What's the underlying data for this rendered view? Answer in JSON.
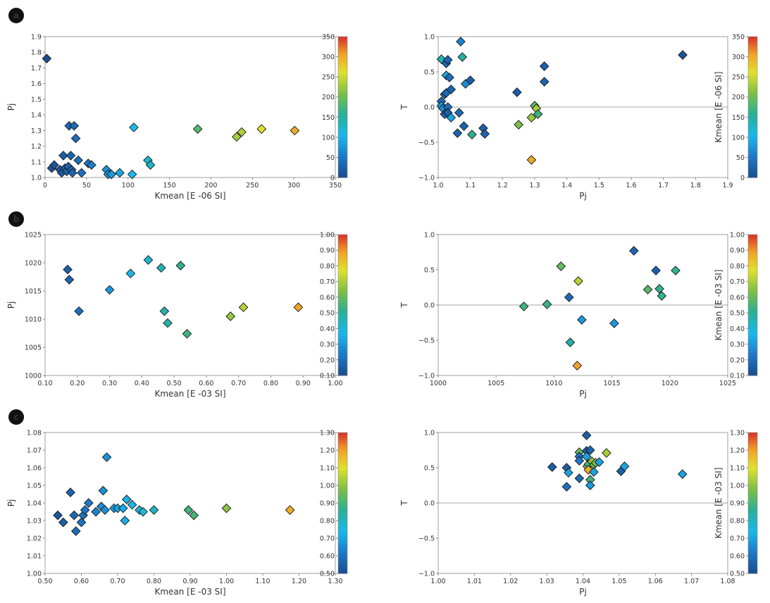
{
  "panel_labels": [
    "a",
    "b",
    "c"
  ],
  "chart_data": [
    {
      "id": "a-left",
      "type": "scatter",
      "marker": "diamond",
      "xlabel": "Kmean [E -06 SI]",
      "ylabel": "Pj",
      "xlim": [
        0,
        350
      ],
      "ylim": [
        1.0,
        1.9
      ],
      "xticks": [
        "0",
        "50",
        "100",
        "150",
        "200",
        "250",
        "300",
        "350"
      ],
      "yticks": [
        "1.0",
        "1.1",
        "1.2",
        "1.3",
        "1.4",
        "1.5",
        "1.6",
        "1.7",
        "1.8",
        "1.9"
      ],
      "colorbar": {
        "min": 0,
        "max": 350,
        "ticks": [
          "0",
          "50",
          "100",
          "150",
          "200",
          "250",
          "300",
          "350"
        ],
        "label": ""
      },
      "refline": null,
      "points": [
        {
          "x": 2,
          "y": 1.76,
          "c": 2
        },
        {
          "x": 8,
          "y": 1.06,
          "c": 8
        },
        {
          "x": 11,
          "y": 1.08,
          "c": 11
        },
        {
          "x": 18,
          "y": 1.05,
          "c": 18
        },
        {
          "x": 20,
          "y": 1.03,
          "c": 20
        },
        {
          "x": 22,
          "y": 1.14,
          "c": 22
        },
        {
          "x": 24,
          "y": 1.06,
          "c": 24
        },
        {
          "x": 26,
          "y": 1.04,
          "c": 26
        },
        {
          "x": 28,
          "y": 1.07,
          "c": 28
        },
        {
          "x": 29,
          "y": 1.33,
          "c": 29
        },
        {
          "x": 31,
          "y": 1.14,
          "c": 31
        },
        {
          "x": 32,
          "y": 1.05,
          "c": 32
        },
        {
          "x": 33,
          "y": 1.03,
          "c": 33
        },
        {
          "x": 35,
          "y": 1.33,
          "c": 35
        },
        {
          "x": 37,
          "y": 1.25,
          "c": 37
        },
        {
          "x": 40,
          "y": 1.11,
          "c": 40
        },
        {
          "x": 44,
          "y": 1.03,
          "c": 44
        },
        {
          "x": 52,
          "y": 1.09,
          "c": 52
        },
        {
          "x": 56,
          "y": 1.08,
          "c": 56
        },
        {
          "x": 74,
          "y": 1.05,
          "c": 74
        },
        {
          "x": 76,
          "y": 1.02,
          "c": 76
        },
        {
          "x": 80,
          "y": 1.02,
          "c": 80
        },
        {
          "x": 90,
          "y": 1.03,
          "c": 90
        },
        {
          "x": 105,
          "y": 1.02,
          "c": 105
        },
        {
          "x": 107,
          "y": 1.32,
          "c": 107
        },
        {
          "x": 124,
          "y": 1.11,
          "c": 124
        },
        {
          "x": 127,
          "y": 1.08,
          "c": 127
        },
        {
          "x": 184,
          "y": 1.31,
          "c": 184
        },
        {
          "x": 231,
          "y": 1.26,
          "c": 231
        },
        {
          "x": 237,
          "y": 1.29,
          "c": 237
        },
        {
          "x": 261,
          "y": 1.31,
          "c": 261
        },
        {
          "x": 301,
          "y": 1.3,
          "c": 301
        }
      ]
    },
    {
      "id": "a-right",
      "type": "scatter",
      "marker": "diamond",
      "xlabel": "Pj",
      "ylabel": "T",
      "xlim": [
        1.0,
        1.9
      ],
      "ylim": [
        -1.0,
        1.0
      ],
      "xticks": [
        "1.0",
        "1.1",
        "1.2",
        "1.3",
        "1.4",
        "1.5",
        "1.6",
        "1.7",
        "1.8",
        "1.9"
      ],
      "yticks": [
        "−1.0",
        "−0.5",
        "0.0",
        "0.5",
        "1.0"
      ],
      "colorbar": {
        "min": 0,
        "max": 350,
        "ticks": [
          "0",
          "50",
          "100",
          "150",
          "200",
          "250",
          "300",
          "350"
        ],
        "label": "Kmean [E -06 SI]"
      },
      "refline": 0,
      "points": [
        {
          "x": 1.01,
          "y": 0.68,
          "c": 140
        },
        {
          "x": 1.01,
          "y": 0.08,
          "c": 40
        },
        {
          "x": 1.01,
          "y": 0.02,
          "c": 80
        },
        {
          "x": 1.015,
          "y": -0.02,
          "c": 70
        },
        {
          "x": 1.02,
          "y": 0.18,
          "c": 30
        },
        {
          "x": 1.02,
          "y": -0.1,
          "c": 25
        },
        {
          "x": 1.025,
          "y": 0.62,
          "c": 30
        },
        {
          "x": 1.025,
          "y": 0.2,
          "c": 35
        },
        {
          "x": 1.025,
          "y": 0.45,
          "c": 90
        },
        {
          "x": 1.03,
          "y": 0.67,
          "c": 30
        },
        {
          "x": 1.03,
          "y": 0.0,
          "c": 40
        },
        {
          "x": 1.03,
          "y": -0.08,
          "c": 25
        },
        {
          "x": 1.035,
          "y": 0.42,
          "c": 40
        },
        {
          "x": 1.04,
          "y": 0.25,
          "c": 30
        },
        {
          "x": 1.04,
          "y": -0.15,
          "c": 90
        },
        {
          "x": 1.06,
          "y": -0.37,
          "c": 30
        },
        {
          "x": 1.065,
          "y": -0.08,
          "c": 35
        },
        {
          "x": 1.07,
          "y": 0.93,
          "c": 60
        },
        {
          "x": 1.075,
          "y": 0.71,
          "c": 150
        },
        {
          "x": 1.08,
          "y": -0.27,
          "c": 30
        },
        {
          "x": 1.085,
          "y": 0.33,
          "c": 70
        },
        {
          "x": 1.1,
          "y": 0.38,
          "c": 25
        },
        {
          "x": 1.105,
          "y": -0.39,
          "c": 160
        },
        {
          "x": 1.14,
          "y": -0.3,
          "c": 25
        },
        {
          "x": 1.145,
          "y": -0.38,
          "c": 30
        },
        {
          "x": 1.245,
          "y": 0.21,
          "c": 20
        },
        {
          "x": 1.25,
          "y": -0.25,
          "c": 210
        },
        {
          "x": 1.29,
          "y": -0.75,
          "c": 300
        },
        {
          "x": 1.29,
          "y": -0.15,
          "c": 225
        },
        {
          "x": 1.3,
          "y": 0.02,
          "c": 190
        },
        {
          "x": 1.305,
          "y": -0.02,
          "c": 230
        },
        {
          "x": 1.31,
          "y": -0.1,
          "c": 170
        },
        {
          "x": 1.33,
          "y": 0.58,
          "c": 25
        },
        {
          "x": 1.33,
          "y": 0.36,
          "c": 30
        },
        {
          "x": 1.76,
          "y": 0.74,
          "c": 10
        }
      ]
    },
    {
      "id": "b-left",
      "type": "scatter",
      "marker": "diamond",
      "xlabel": "Kmean [E -03 SI]",
      "ylabel": "Pj",
      "xlim": [
        0.1,
        1.0
      ],
      "ylim": [
        1000,
        1025
      ],
      "xticks": [
        "0.10",
        "0.20",
        "0.30",
        "0.40",
        "0.50",
        "0.60",
        "0.70",
        "0.80",
        "0.90",
        "1.00"
      ],
      "yticks": [
        "1000",
        "1005",
        "1010",
        "1015",
        "1020",
        "1025"
      ],
      "colorbar": {
        "min": 0.1,
        "max": 1.0,
        "ticks": [
          "0.10",
          "0.20",
          "0.30",
          "0.40",
          "0.50",
          "0.60",
          "0.70",
          "0.80",
          "0.90",
          "1.00"
        ],
        "label": ""
      },
      "refline": null,
      "points": [
        {
          "x": 0.17,
          "y": 1018.8,
          "c": 0.17
        },
        {
          "x": 0.175,
          "y": 1017.0,
          "c": 0.175
        },
        {
          "x": 0.205,
          "y": 1011.4,
          "c": 0.205
        },
        {
          "x": 0.3,
          "y": 1015.2,
          "c": 0.3
        },
        {
          "x": 0.365,
          "y": 1018.1,
          "c": 0.365
        },
        {
          "x": 0.42,
          "y": 1020.5,
          "c": 0.42
        },
        {
          "x": 0.46,
          "y": 1019.1,
          "c": 0.46
        },
        {
          "x": 0.47,
          "y": 1011.4,
          "c": 0.47
        },
        {
          "x": 0.48,
          "y": 1009.3,
          "c": 0.48
        },
        {
          "x": 0.52,
          "y": 1019.5,
          "c": 0.52
        },
        {
          "x": 0.54,
          "y": 1007.4,
          "c": 0.54
        },
        {
          "x": 0.675,
          "y": 1010.5,
          "c": 0.675
        },
        {
          "x": 0.715,
          "y": 1012.1,
          "c": 0.715
        },
        {
          "x": 0.885,
          "y": 1012.1,
          "c": 0.885
        }
      ]
    },
    {
      "id": "b-right",
      "type": "scatter",
      "marker": "diamond",
      "xlabel": "Pj",
      "ylabel": "T",
      "xlim": [
        1000,
        1025
      ],
      "ylim": [
        -1.0,
        1.0
      ],
      "xticks": [
        "1000",
        "1005",
        "1010",
        "1015",
        "1020",
        "1025"
      ],
      "yticks": [
        "−1.0",
        "−0.5",
        "0.0",
        "0.5",
        "1.0"
      ],
      "colorbar": {
        "min": 0.1,
        "max": 1.0,
        "ticks": [
          "0.10",
          "0.20",
          "0.30",
          "0.40",
          "0.50",
          "0.60",
          "0.70",
          "0.80",
          "0.90",
          "1.00"
        ],
        "label": "Kmean [E -03 SI]"
      },
      "refline": 0,
      "points": [
        {
          "x": 1007.4,
          "y": -0.02,
          "c": 0.54
        },
        {
          "x": 1009.4,
          "y": 0.01,
          "c": 0.53
        },
        {
          "x": 1010.6,
          "y": 0.55,
          "c": 0.6
        },
        {
          "x": 1011.3,
          "y": 0.11,
          "c": 0.2
        },
        {
          "x": 1011.4,
          "y": -0.53,
          "c": 0.48
        },
        {
          "x": 1012.0,
          "y": -0.86,
          "c": 0.885
        },
        {
          "x": 1012.1,
          "y": 0.34,
          "c": 0.715
        },
        {
          "x": 1012.4,
          "y": -0.21,
          "c": 0.3
        },
        {
          "x": 1015.2,
          "y": -0.26,
          "c": 0.3
        },
        {
          "x": 1016.9,
          "y": 0.77,
          "c": 0.18
        },
        {
          "x": 1018.1,
          "y": 0.22,
          "c": 0.58
        },
        {
          "x": 1018.8,
          "y": 0.49,
          "c": 0.17
        },
        {
          "x": 1019.1,
          "y": 0.23,
          "c": 0.52
        },
        {
          "x": 1019.3,
          "y": 0.13,
          "c": 0.52
        },
        {
          "x": 1020.5,
          "y": 0.49,
          "c": 0.52
        }
      ]
    },
    {
      "id": "c-left",
      "type": "scatter",
      "marker": "diamond",
      "xlabel": "Kmean [E -03 SI]",
      "ylabel": "Pj",
      "xlim": [
        0.5,
        1.3
      ],
      "ylim": [
        1.0,
        1.08
      ],
      "xticks": [
        "0.50",
        "0.60",
        "0.70",
        "0.80",
        "0.90",
        "1.00",
        "1.10",
        "1.20",
        "1.30"
      ],
      "yticks": [
        "1.00",
        "1.01",
        "1.02",
        "1.03",
        "1.04",
        "1.05",
        "1.06",
        "1.07",
        "1.08"
      ],
      "colorbar": {
        "min": 0.5,
        "max": 1.3,
        "ticks": [
          "0.50",
          "0.60",
          "0.70",
          "0.80",
          "0.90",
          "1.00",
          "1.10",
          "1.20",
          "1.30"
        ],
        "label": ""
      },
      "refline": null,
      "points": [
        {
          "x": 0.535,
          "y": 1.033,
          "c": 0.535
        },
        {
          "x": 0.55,
          "y": 1.029,
          "c": 0.55
        },
        {
          "x": 0.57,
          "y": 1.046,
          "c": 0.57
        },
        {
          "x": 0.58,
          "y": 1.033,
          "c": 0.58
        },
        {
          "x": 0.585,
          "y": 1.024,
          "c": 0.585
        },
        {
          "x": 0.6,
          "y": 1.029,
          "c": 0.6
        },
        {
          "x": 0.605,
          "y": 1.033,
          "c": 0.605
        },
        {
          "x": 0.61,
          "y": 1.036,
          "c": 0.61
        },
        {
          "x": 0.62,
          "y": 1.04,
          "c": 0.62
        },
        {
          "x": 0.64,
          "y": 1.035,
          "c": 0.64
        },
        {
          "x": 0.655,
          "y": 1.038,
          "c": 0.655
        },
        {
          "x": 0.66,
          "y": 1.047,
          "c": 0.66
        },
        {
          "x": 0.665,
          "y": 1.036,
          "c": 0.665
        },
        {
          "x": 0.67,
          "y": 1.066,
          "c": 0.67
        },
        {
          "x": 0.69,
          "y": 1.037,
          "c": 0.69
        },
        {
          "x": 0.7,
          "y": 1.037,
          "c": 0.7
        },
        {
          "x": 0.715,
          "y": 1.037,
          "c": 0.715
        },
        {
          "x": 0.72,
          "y": 1.03,
          "c": 0.72
        },
        {
          "x": 0.725,
          "y": 1.042,
          "c": 0.725
        },
        {
          "x": 0.74,
          "y": 1.039,
          "c": 0.74
        },
        {
          "x": 0.76,
          "y": 1.036,
          "c": 0.76
        },
        {
          "x": 0.77,
          "y": 1.035,
          "c": 0.77
        },
        {
          "x": 0.8,
          "y": 1.036,
          "c": 0.8
        },
        {
          "x": 0.895,
          "y": 1.036,
          "c": 0.895
        },
        {
          "x": 0.91,
          "y": 1.033,
          "c": 0.91
        },
        {
          "x": 1.0,
          "y": 1.037,
          "c": 1.0
        },
        {
          "x": 1.175,
          "y": 1.036,
          "c": 1.175
        }
      ]
    },
    {
      "id": "c-right",
      "type": "scatter",
      "marker": "diamond",
      "xlabel": "Pj",
      "ylabel": "T",
      "xlim": [
        1.0,
        1.08
      ],
      "ylim": [
        -1.0,
        1.0
      ],
      "xticks": [
        "1.00",
        "1.01",
        "1.02",
        "1.03",
        "1.04",
        "1.05",
        "1.06",
        "1.07",
        "1.08"
      ],
      "yticks": [
        "−1.0",
        "−0.5",
        "0.0",
        "0.5",
        "1.0"
      ],
      "colorbar": {
        "min": 0.5,
        "max": 1.3,
        "ticks": [
          "0.50",
          "0.60",
          "0.70",
          "0.80",
          "0.90",
          "1.00",
          "1.10",
          "1.20",
          "1.30"
        ],
        "label": "Kmean [E -03 SI]"
      },
      "refline": 0,
      "points": [
        {
          "x": 1.0315,
          "y": 0.51,
          "c": 0.55
        },
        {
          "x": 1.0355,
          "y": 0.5,
          "c": 0.55
        },
        {
          "x": 1.0355,
          "y": 0.23,
          "c": 0.6
        },
        {
          "x": 1.036,
          "y": 0.43,
          "c": 0.7
        },
        {
          "x": 1.039,
          "y": 0.72,
          "c": 0.95
        },
        {
          "x": 1.039,
          "y": 0.66,
          "c": 0.6
        },
        {
          "x": 1.039,
          "y": 0.6,
          "c": 0.62
        },
        {
          "x": 1.039,
          "y": 0.35,
          "c": 0.58
        },
        {
          "x": 1.041,
          "y": 0.96,
          "c": 0.55
        },
        {
          "x": 1.041,
          "y": 0.74,
          "c": 0.57
        },
        {
          "x": 1.041,
          "y": 0.66,
          "c": 0.7
        },
        {
          "x": 1.0412,
          "y": 0.52,
          "c": 1.0
        },
        {
          "x": 1.0415,
          "y": 0.55,
          "c": 0.9
        },
        {
          "x": 1.0415,
          "y": 0.47,
          "c": 1.18
        },
        {
          "x": 1.042,
          "y": 0.75,
          "c": 0.57
        },
        {
          "x": 1.042,
          "y": 0.33,
          "c": 0.9
        },
        {
          "x": 1.042,
          "y": 0.25,
          "c": 0.68
        },
        {
          "x": 1.0425,
          "y": 0.59,
          "c": 1.0
        },
        {
          "x": 1.043,
          "y": 0.54,
          "c": 0.95
        },
        {
          "x": 1.043,
          "y": 0.44,
          "c": 0.7
        },
        {
          "x": 1.0435,
          "y": 0.57,
          "c": 0.98
        },
        {
          "x": 1.0445,
          "y": 0.58,
          "c": 0.7
        },
        {
          "x": 1.0465,
          "y": 0.71,
          "c": 1.03
        },
        {
          "x": 1.0505,
          "y": 0.45,
          "c": 0.55
        },
        {
          "x": 1.0515,
          "y": 0.52,
          "c": 0.7
        },
        {
          "x": 1.0675,
          "y": 0.41,
          "c": 0.7
        }
      ]
    }
  ]
}
